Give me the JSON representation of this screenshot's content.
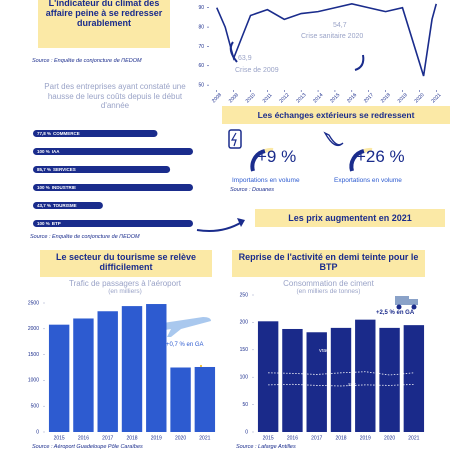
{
  "top_box": {
    "title": "L'indicateur du climat des affaire peine à se redresser durablement",
    "source": "Source : Enquête de conjoncture de l'IEDOM"
  },
  "exchanges": {
    "title": "Les échanges extérieurs se redressent",
    "imports_change": "+9 %",
    "imports_label": "Importations en volume",
    "exports_change": "+26 %",
    "exports_label": "Exportations en volume",
    "source": "Source : Douanes"
  },
  "prices_box": "Les prix augmentent en 2021",
  "chart_data": [
    {
      "type": "line",
      "color": "#1a2c8c",
      "x": [
        2008,
        2008.5,
        2009,
        2009.5,
        2010,
        2011,
        2012,
        2013,
        2014,
        2015,
        2016,
        2017,
        2018,
        2019,
        2020.25,
        2020.75,
        2021
      ],
      "values": [
        90,
        80,
        63.9,
        75,
        86,
        89,
        84,
        87,
        88,
        90,
        92,
        90,
        88,
        90,
        54.7,
        84,
        92
      ],
      "xlim": [
        2007.6,
        2021.4
      ],
      "xticks": [
        2008,
        2009,
        2010,
        2011,
        2012,
        2013,
        2014,
        2015,
        2016,
        2017,
        2018,
        2019,
        2020,
        2021
      ],
      "ylim": [
        48,
        94
      ],
      "yticks": [
        50,
        60,
        70,
        80,
        90
      ],
      "annotations": [
        "63,9",
        "Crise de 2009",
        "54,7",
        "Crise sanitaire 2020"
      ]
    },
    {
      "type": "hbar",
      "title": "Part des entreprises ayant constaté une hausse de leurs coûts depuis le début d'année",
      "categories": [
        "COMMERCE",
        "IAA",
        "SERVICES",
        "INDUSTRIE",
        "TOURISME",
        "BTP"
      ],
      "values": [
        77.8,
        100,
        85.7,
        100,
        43.7,
        100
      ],
      "value_labels": [
        "77,8 %",
        "100 %",
        "85,7 %",
        "100 %",
        "43,7 %",
        "100 %"
      ],
      "color": "#1a2c8c",
      "xlim": [
        0,
        100
      ],
      "source": "Source : Enquête de conjoncture de l'IEDOM"
    },
    {
      "type": "bar",
      "title": "Le secteur du tourisme se relève difficilement",
      "subtitle": "Trafic de passagers à l'aéroport",
      "unit": "(en milliers)",
      "categories": [
        "2015",
        "2016",
        "2017",
        "2018",
        "2019",
        "2020",
        "2021"
      ],
      "values": [
        2080,
        2200,
        2340,
        2440,
        2480,
        1250,
        1260
      ],
      "color": "#2d5bd0",
      "ylim": [
        0,
        2500
      ],
      "yticks": [
        0,
        500,
        1000,
        1500,
        2000,
        2500
      ],
      "annotation": "+0,7 % en GA",
      "source": "Source : Aéroport Guadeloupe Pôle Caraïbes"
    },
    {
      "type": "bar",
      "title": "Reprise de l'activité en demi teinte pour le BTP",
      "subtitle": "Consommation de ciment",
      "unit": "(en milliers de tonnes)",
      "categories": [
        "2015",
        "2016",
        "2017",
        "2018",
        "2019",
        "2020",
        "2021"
      ],
      "values": [
        202,
        188,
        182,
        190,
        205,
        190,
        195
      ],
      "color": "#1a2a8a",
      "ylim": [
        0,
        250
      ],
      "yticks": [
        0,
        50,
        100,
        150,
        200,
        250
      ],
      "lines": [
        {
          "name": "vrac",
          "color": "#ffffff",
          "values": [
            108,
            107,
            105,
            108,
            110,
            104,
            108
          ]
        },
        {
          "name": "sac",
          "color": "#ffffff",
          "values": [
            86,
            87,
            85,
            84,
            86,
            85,
            87
          ]
        }
      ],
      "annotation": "+2,5 % en GA",
      "source": "Source : Lafarge Antilles"
    }
  ]
}
